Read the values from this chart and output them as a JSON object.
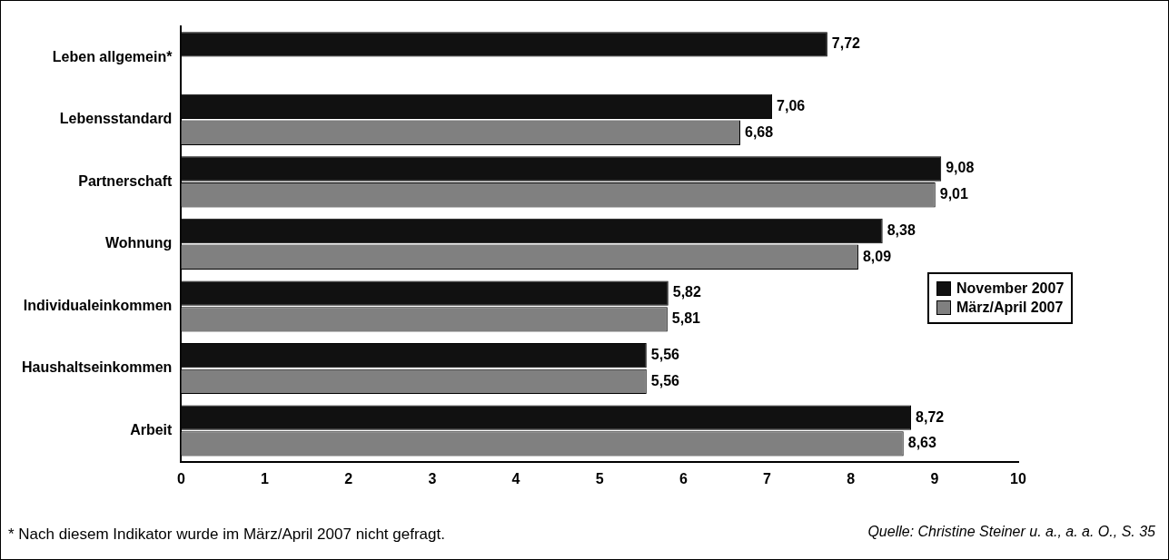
{
  "chart_data": {
    "type": "bar",
    "orientation": "horizontal",
    "categories": [
      "Leben allgemein*",
      "Lebensstandard",
      "Partnerschaft",
      "Wohnung",
      "Individualeinkommen",
      "Haushaltseinkommen",
      "Arbeit"
    ],
    "series": [
      {
        "name": "November 2007",
        "color": "#111111",
        "values": [
          7.72,
          7.06,
          9.08,
          8.38,
          5.82,
          5.56,
          8.72
        ],
        "value_labels": [
          "7,72",
          "7,06",
          "9,08",
          "8,38",
          "5,82",
          "5,56",
          "8,72"
        ]
      },
      {
        "name": "März/April 2007",
        "color": "#808080",
        "values": [
          null,
          6.68,
          9.01,
          8.09,
          5.81,
          5.56,
          8.63
        ],
        "value_labels": [
          null,
          "6,68",
          "9,01",
          "8,09",
          "5,81",
          "5,56",
          "8,63"
        ]
      }
    ],
    "xlim": [
      0,
      10
    ],
    "xticks": [
      0,
      1,
      2,
      3,
      4,
      5,
      6,
      7,
      8,
      9,
      10
    ],
    "grid": false,
    "legend": "right",
    "annotations": [
      "* Nach diesem Indikator wurde im März/April 2007 nicht gefragt.",
      "Quelle: Christine Steiner u. a., a. a. O., S. 35"
    ]
  }
}
